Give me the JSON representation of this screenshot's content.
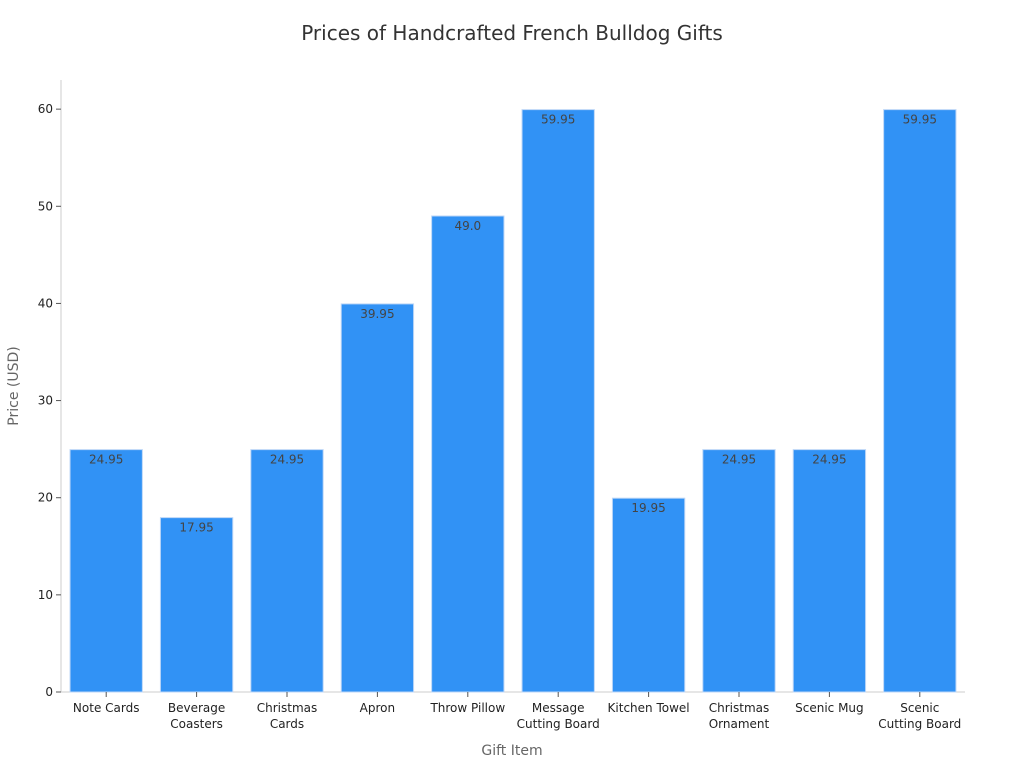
{
  "chart_data": {
    "type": "bar",
    "title": "Prices of Handcrafted French Bulldog Gifts",
    "xlabel": "Gift Item",
    "ylabel": "Price (USD)",
    "categories": [
      [
        "Note Cards"
      ],
      [
        "Beverage",
        "Coasters"
      ],
      [
        "Christmas",
        "Cards"
      ],
      [
        "Apron"
      ],
      [
        "Throw Pillow"
      ],
      [
        "Message",
        "Cutting Board"
      ],
      [
        "Kitchen Towel"
      ],
      [
        "Christmas",
        "Ornament"
      ],
      [
        "Scenic Mug"
      ],
      [
        "Scenic",
        "Cutting Board"
      ]
    ],
    "values": [
      24.95,
      17.95,
      24.95,
      39.95,
      49.0,
      59.95,
      19.95,
      24.95,
      24.95,
      59.95
    ],
    "value_labels": [
      "24.95",
      "17.95",
      "24.95",
      "39.95",
      "49.0",
      "59.95",
      "19.95",
      "24.95",
      "24.95",
      "59.95"
    ],
    "yticks": [
      0,
      10,
      20,
      30,
      40,
      50,
      60
    ],
    "ylim": [
      0,
      63
    ],
    "grid": false,
    "legend": "none",
    "bar_color": "#3192f5",
    "bar_edge_color": "#bcd6f7"
  }
}
